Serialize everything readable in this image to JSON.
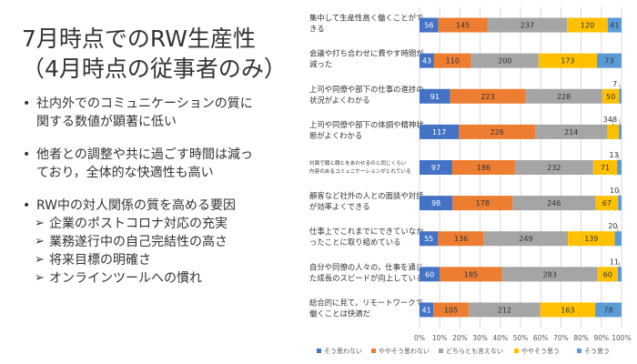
{
  "slide": {
    "title_line1": "7月時点でのRW生産性",
    "title_line2": "（4月時点の従事者のみ）",
    "bullets": [
      {
        "level": 1,
        "text": "社内外でのコミュニケーションの質に"
      },
      {
        "level": 1,
        "cont": true,
        "text": "関する数値が顕著に低い"
      },
      {
        "gap": true
      },
      {
        "level": 1,
        "text": "他者との調整や共に過ごす時間は減っ"
      },
      {
        "level": 1,
        "cont": true,
        "text": "ており，全体的な快適性も高い"
      },
      {
        "gap": true
      },
      {
        "level": 1,
        "text": "RW中の対人関係の質を高める要因"
      },
      {
        "level": 2,
        "text": "企業のポストコロナ対応の充実"
      },
      {
        "level": 2,
        "text": "業務遂行中の自己完結性の高さ"
      },
      {
        "level": 2,
        "text": "将来目標の明確さ"
      },
      {
        "level": 2,
        "text": "オンラインツールへの慣れ"
      }
    ]
  },
  "colors": {
    "s1": "#4472c4",
    "s2": "#ed7d31",
    "s3": "#a5a5a5",
    "s4": "#ffc000",
    "s5": "#5b9bd5"
  },
  "chart_data": {
    "type": "bar",
    "orientation": "horizontal",
    "stacked": "percent",
    "categories": [
      [
        "集中して生産性高く働くことがで",
        "きる"
      ],
      [
        "会議や打ち合わせに費やす時間が",
        "減った"
      ],
      [
        "上司や同僚や部下の仕事の進捗の",
        "状況がよくわかる"
      ],
      [
        "上司や同僚や部下の体調や精神状",
        "態がよくわかる"
      ],
      [
        "対面で顔と顔とをあわせるのと同じくらい",
        "内容のあるコミュニケーションがとれている"
      ],
      [
        "顧客など社外の人との面談や対話",
        "が効率よくできる"
      ],
      [
        "仕事上でこれまでにできていなか",
        "ったことに取り組めている"
      ],
      [
        "自分や同僚の人々の，仕事を通じ",
        "た成長のスピードが向上している"
      ],
      [
        "総合的に見て，リモートワークで",
        "働くことは快適だ"
      ]
    ],
    "series": [
      {
        "name": "そう思わない",
        "values": [
          56,
          43,
          91,
          117,
          97,
          98,
          55,
          60,
          41
        ]
      },
      {
        "name": "ややそう思わない",
        "values": [
          145,
          110,
          223,
          226,
          186,
          178,
          136,
          185,
          105
        ]
      },
      {
        "name": "どちらとも言えない",
        "values": [
          237,
          200,
          228,
          214,
          232,
          246,
          249,
          283,
          212
        ]
      },
      {
        "name": "ややそう思う",
        "values": [
          120,
          173,
          50,
          34,
          71,
          67,
          139,
          60,
          163
        ]
      },
      {
        "name": "そう思う",
        "values": [
          41,
          73,
          7,
          8,
          13,
          10,
          20,
          11,
          78
        ]
      }
    ],
    "xlim": [
      0,
      100
    ],
    "xticks": [
      "0%",
      "10%",
      "20%",
      "30%",
      "40%",
      "50%",
      "60%",
      "70%",
      "80%",
      "90%",
      "100%"
    ],
    "legend_position": "bottom",
    "grid": true
  }
}
